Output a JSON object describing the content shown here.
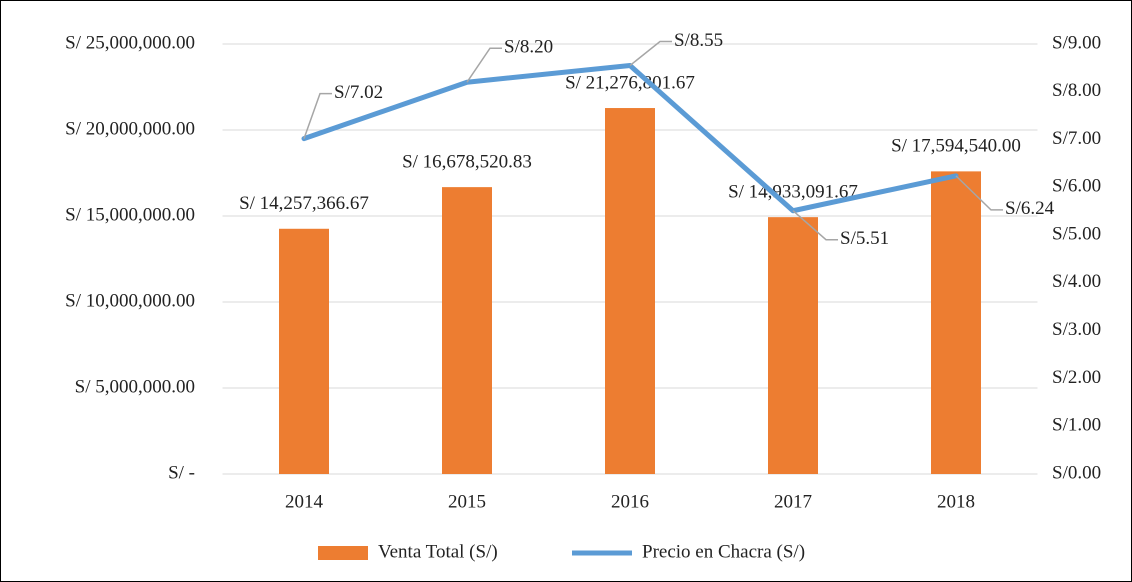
{
  "chart_data": {
    "type": "bar",
    "categories": [
      "2014",
      "2015",
      "2016",
      "2017",
      "2018"
    ],
    "series": [
      {
        "name": "Venta Total (S/)",
        "type": "bar",
        "color": "#ED7D31",
        "values": [
          14257366.67,
          16678520.83,
          21276801.67,
          14933091.67,
          17594540.0
        ],
        "value_labels": [
          "S/ 14,257,366.67",
          "S/ 16,678,520.83",
          "S/ 21,276,801.67",
          "S/ 14,933,091.67",
          "S/ 17,594,540.00"
        ]
      },
      {
        "name": "Precio en Chacra (S/)",
        "type": "line",
        "axis": "y2",
        "color": "#5B9BD5",
        "values": [
          7.02,
          8.2,
          8.55,
          5.51,
          6.24
        ],
        "value_labels": [
          "S/7.02",
          "S/8.20",
          "S/8.55",
          "S/5.51",
          "S/6.24"
        ]
      }
    ],
    "ylim": [
      0,
      25000000
    ],
    "yticks": [
      {
        "value": 0,
        "label": "S/ -"
      },
      {
        "value": 5000000,
        "label": "S/ 5,000,000.00"
      },
      {
        "value": 10000000,
        "label": "S/ 10,000,000.00"
      },
      {
        "value": 15000000,
        "label": "S/ 15,000,000.00"
      },
      {
        "value": 20000000,
        "label": "S/ 20,000,000.00"
      },
      {
        "value": 25000000,
        "label": "S/ 25,000,000.00"
      }
    ],
    "y2lim": [
      0,
      9
    ],
    "y2ticks": [
      {
        "value": 0,
        "label": "S/0.00"
      },
      {
        "value": 1,
        "label": "S/1.00"
      },
      {
        "value": 2,
        "label": "S/2.00"
      },
      {
        "value": 3,
        "label": "S/3.00"
      },
      {
        "value": 4,
        "label": "S/4.00"
      },
      {
        "value": 5,
        "label": "S/5.00"
      },
      {
        "value": 6,
        "label": "S/6.00"
      },
      {
        "value": 7,
        "label": "S/7.00"
      },
      {
        "value": 8,
        "label": "S/8.00"
      },
      {
        "value": 9,
        "label": "S/9.00"
      }
    ],
    "grid": true,
    "legend": "bottom"
  }
}
